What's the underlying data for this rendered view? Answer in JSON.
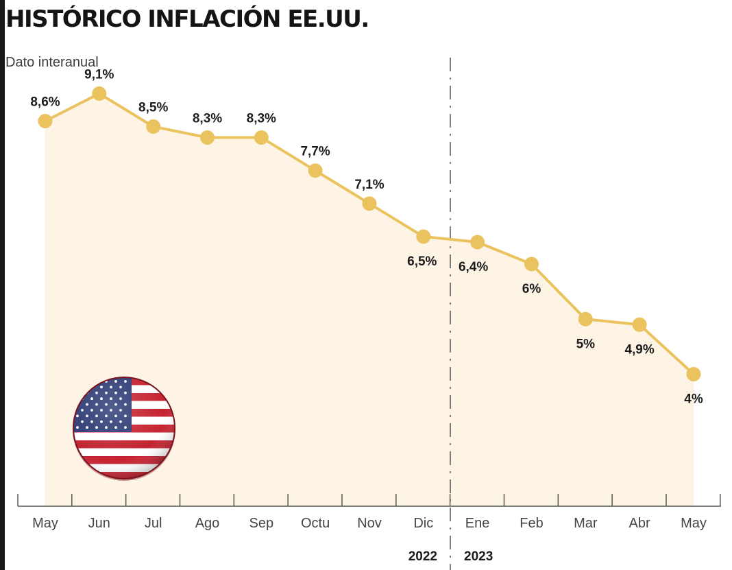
{
  "header": {
    "title": "HISTÓRICO INFLACIÓN EE.UU.",
    "subtitle": "Dato interanual"
  },
  "years": [
    "2022",
    "2023"
  ],
  "flag": {
    "icon": "us-flag-icon"
  },
  "colors": {
    "line": "#ebc35e",
    "marker": "#ebc35e",
    "area": "#fdf4e5",
    "axis": "#555555",
    "divider": "#555555"
  },
  "chart_data": {
    "type": "area",
    "title": "HISTÓRICO INFLACIÓN EE.UU.",
    "subtitle": "Dato interanual",
    "categories": [
      "May",
      "Jun",
      "Jul",
      "Ago",
      "Sep",
      "Octu",
      "Nov",
      "Dic",
      "Ene",
      "Feb",
      "Mar",
      "Abr",
      "May"
    ],
    "values": [
      8.6,
      9.1,
      8.5,
      8.3,
      8.3,
      7.7,
      7.1,
      6.5,
      6.4,
      6.0,
      5.0,
      4.9,
      4.0
    ],
    "value_labels": [
      "8,6%",
      "9,1%",
      "8,5%",
      "8,3%",
      "8,3%",
      "7,7%",
      "7,1%",
      "6,5%",
      "6,4%",
      "6%",
      "5%",
      "4,9%",
      "4%"
    ],
    "year_groups": [
      {
        "year": "2022",
        "categories": [
          "May",
          "Jun",
          "Jul",
          "Ago",
          "Sep",
          "Octu",
          "Nov",
          "Dic"
        ]
      },
      {
        "year": "2023",
        "categories": [
          "Ene",
          "Feb",
          "Mar",
          "Abr",
          "May"
        ]
      }
    ],
    "xlabel": "",
    "ylabel": "",
    "ylim": [
      1.6,
      10.8
    ],
    "grid": false,
    "legend": "none"
  }
}
